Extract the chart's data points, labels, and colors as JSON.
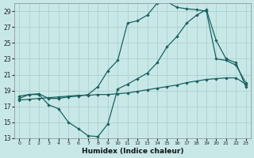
{
  "title": "",
  "xlabel": "Humidex (Indice chaleur)",
  "ylabel": "",
  "bg_color": "#c8e8e8",
  "grid_color": "#b0d0d0",
  "line_color": "#1a6060",
  "xlim": [
    -0.5,
    23.5
  ],
  "ylim": [
    13,
    30
  ],
  "yticks": [
    13,
    15,
    17,
    19,
    21,
    23,
    25,
    27,
    29
  ],
  "xticks": [
    0,
    1,
    2,
    3,
    4,
    5,
    6,
    7,
    8,
    9,
    10,
    11,
    12,
    13,
    14,
    15,
    16,
    17,
    18,
    19,
    20,
    21,
    22,
    23
  ],
  "line1_x": [
    0,
    1,
    2,
    3,
    4,
    5,
    6,
    7,
    8,
    9,
    10,
    11,
    12,
    13,
    14,
    15,
    16,
    17,
    18,
    19,
    20,
    21,
    22,
    23
  ],
  "line1_y": [
    18.0,
    18.5,
    18.5,
    17.2,
    16.7,
    15.0,
    14.2,
    13.3,
    13.2,
    14.8,
    19.2,
    19.8,
    20.5,
    21.2,
    22.5,
    24.5,
    25.8,
    27.5,
    28.5,
    29.2,
    25.3,
    23.0,
    22.5,
    19.5
  ],
  "line2_x": [
    0,
    1,
    2,
    3,
    4,
    5,
    6,
    7,
    8,
    9,
    10,
    11,
    12,
    13,
    14,
    15,
    16,
    17,
    18,
    19,
    20,
    21,
    22,
    23
  ],
  "line2_y": [
    18.3,
    18.5,
    18.6,
    18.0,
    18.0,
    18.2,
    18.3,
    18.5,
    19.5,
    21.5,
    22.8,
    27.5,
    27.8,
    28.5,
    30.0,
    30.2,
    29.5,
    29.3,
    29.2,
    29.0,
    23.0,
    22.8,
    22.2,
    20.0
  ],
  "line3_x": [
    0,
    1,
    2,
    3,
    4,
    5,
    6,
    7,
    8,
    9,
    10,
    11,
    12,
    13,
    14,
    15,
    16,
    17,
    18,
    19,
    20,
    21,
    22,
    23
  ],
  "line3_y": [
    17.8,
    17.9,
    18.0,
    18.1,
    18.2,
    18.3,
    18.4,
    18.4,
    18.5,
    18.5,
    18.6,
    18.7,
    18.9,
    19.1,
    19.3,
    19.5,
    19.7,
    20.0,
    20.2,
    20.4,
    20.5,
    20.6,
    20.6,
    19.8
  ]
}
